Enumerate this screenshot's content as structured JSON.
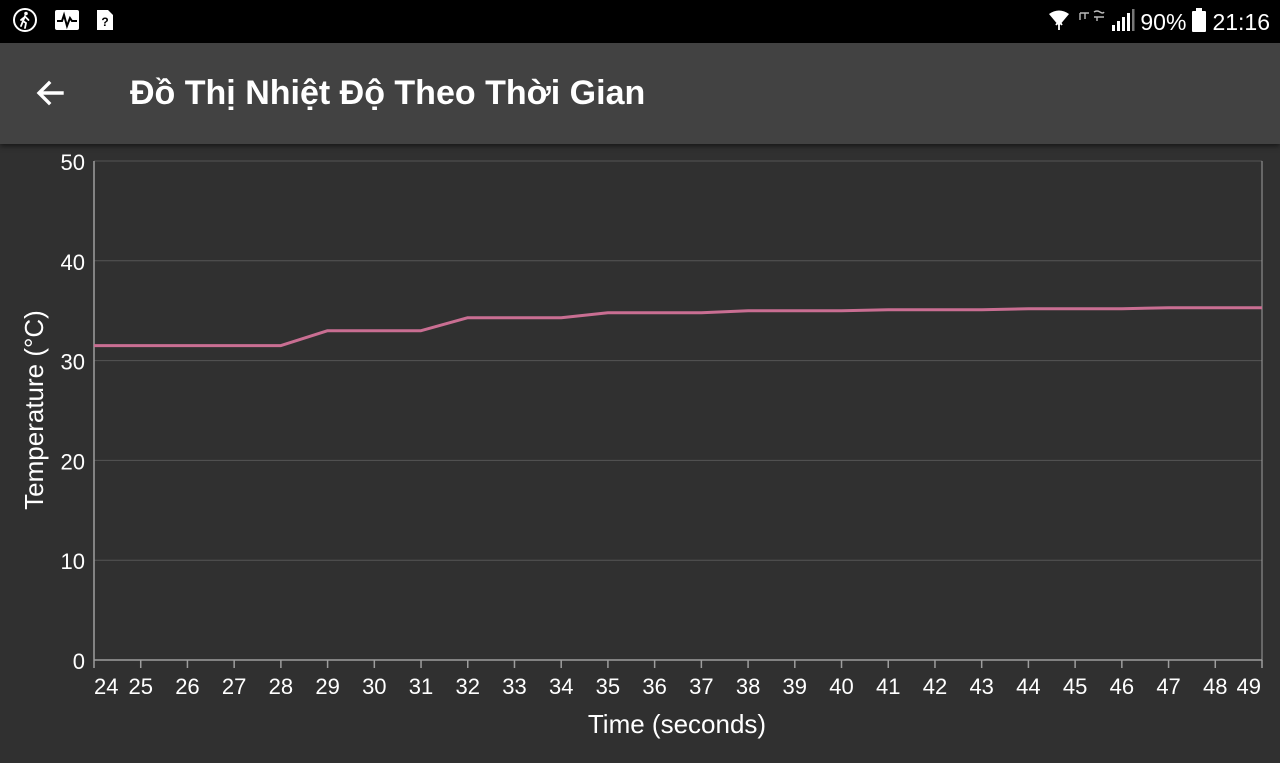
{
  "status_bar": {
    "battery": "90%",
    "time": "21:16",
    "left_icons": [
      "walk-icon",
      "activity-icon",
      "unknown-file-icon"
    ],
    "right_icons": [
      "wifi-icon",
      "network-carrier-icon",
      "signal-icon",
      "battery-icon"
    ]
  },
  "app_bar": {
    "title": "Đồ Thị Nhiệt Độ Theo Thời Gian",
    "back_icon": "arrow-back-icon"
  },
  "colors": {
    "background": "#303030",
    "app_bar": "#424242",
    "line": "#c96e92",
    "grid": "#555555",
    "axis": "#9e9e9e"
  },
  "chart_data": {
    "type": "line",
    "title": "",
    "xlabel": "Time (seconds)",
    "ylabel": "Temperature (°C)",
    "ylim": [
      0,
      50
    ],
    "yticks": [
      0,
      10,
      20,
      30,
      40,
      50
    ],
    "xlim": [
      24,
      49
    ],
    "xticks": [
      24,
      25,
      26,
      27,
      28,
      29,
      30,
      31,
      32,
      33,
      34,
      35,
      36,
      37,
      38,
      39,
      40,
      41,
      42,
      43,
      44,
      45,
      46,
      47,
      48,
      49
    ],
    "grid": true,
    "series": [
      {
        "name": "Temperature",
        "x": [
          24,
          25,
          26,
          27,
          28,
          29,
          30,
          31,
          32,
          33,
          34,
          35,
          36,
          37,
          38,
          39,
          40,
          41,
          42,
          43,
          44,
          45,
          46,
          47,
          48,
          49
        ],
        "values": [
          31.5,
          31.5,
          31.5,
          31.5,
          31.5,
          33.0,
          33.0,
          33.0,
          34.3,
          34.3,
          34.3,
          34.8,
          34.8,
          34.8,
          35.0,
          35.0,
          35.0,
          35.1,
          35.1,
          35.1,
          35.2,
          35.2,
          35.2,
          35.3,
          35.3,
          35.3
        ]
      }
    ]
  }
}
